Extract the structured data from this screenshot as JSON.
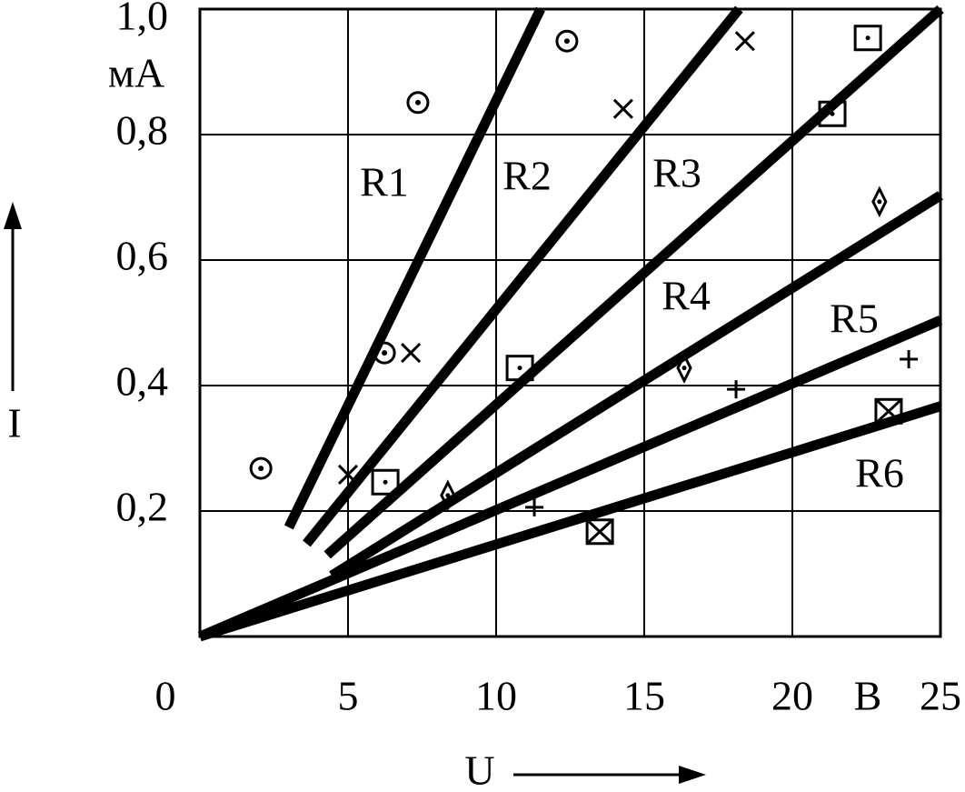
{
  "chart_data": {
    "type": "scatter",
    "x_label": "U",
    "y_label": "I",
    "x_unit": "В",
    "y_unit": "мА",
    "xlim": [
      0,
      25
    ],
    "ylim": [
      0,
      1.0
    ],
    "xticks": [
      0,
      5,
      10,
      15,
      20,
      25
    ],
    "yticks": [
      {
        "value": 0.2,
        "label": "0,2"
      },
      {
        "value": 0.4,
        "label": "0,4"
      },
      {
        "value": 0.6,
        "label": "0,6"
      },
      {
        "value": 0.8,
        "label": "0,8"
      },
      {
        "value": 1.0,
        "label": "1,0"
      }
    ],
    "grid": true,
    "color": "#000000",
    "lines": [
      {
        "name": "R1",
        "x": [
          3.0,
          11.5
        ],
        "values": [
          0.174,
          1.0
        ]
      },
      {
        "name": "R2",
        "x": [
          3.6,
          18.2
        ],
        "values": [
          0.148,
          1.0
        ]
      },
      {
        "name": "R3",
        "x": [
          4.3,
          25
        ],
        "values": [
          0.13,
          1.0
        ]
      },
      {
        "name": "R4",
        "x": [
          4.45,
          25
        ],
        "values": [
          0.097,
          0.703
        ]
      },
      {
        "name": "R5",
        "x": [
          0,
          25
        ],
        "values": [
          0,
          0.504
        ]
      },
      {
        "name": "R6",
        "x": [
          0,
          25
        ],
        "values": [
          0,
          0.367
        ]
      }
    ],
    "series": [
      {
        "marker": "circle-dot",
        "x": [
          2.06,
          6.23,
          7.36,
          12.39
        ],
        "values": [
          0.268,
          0.452,
          0.851,
          0.949
        ]
      },
      {
        "marker": "cross",
        "x": [
          5.0,
          7.12,
          14.29,
          18.4
        ],
        "values": [
          0.258,
          0.452,
          0.841,
          0.949
        ]
      },
      {
        "marker": "square-dot",
        "x": [
          6.26,
          10.8,
          21.35,
          22.55
        ],
        "values": [
          0.246,
          0.428,
          0.833,
          0.954
        ]
      },
      {
        "marker": "diamond-dot",
        "x": [
          8.37,
          16.35,
          22.94
        ],
        "values": [
          0.225,
          0.428,
          0.693
        ]
      },
      {
        "marker": "plus",
        "x": [
          11.29,
          18.1,
          23.93
        ],
        "values": [
          0.206,
          0.394,
          0.442
        ]
      },
      {
        "marker": "square-cross",
        "x": [
          13.5,
          23.25
        ],
        "values": [
          0.167,
          0.359
        ]
      }
    ]
  }
}
